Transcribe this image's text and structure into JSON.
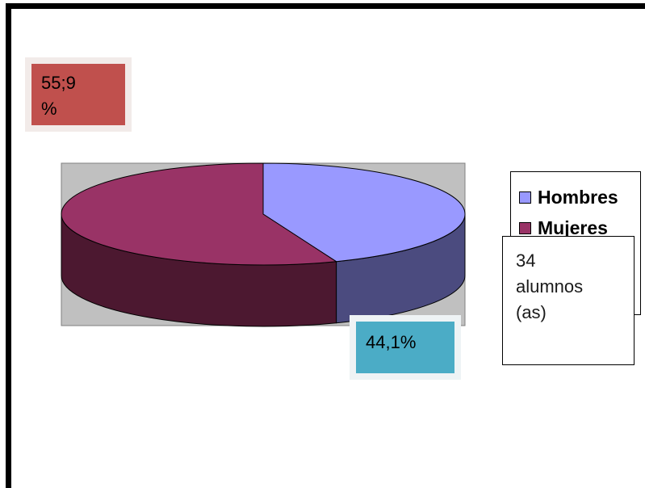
{
  "chart_data": {
    "type": "pie",
    "style": "3d",
    "categories": [
      "Hombres",
      "Mujeres"
    ],
    "values": [
      44.1,
      55.9
    ],
    "colors": {
      "Hombres": "#9999ff",
      "Mujeres": "#993366",
      "Hombres_side": "#4b4b7f",
      "Mujeres_side": "#4c1830",
      "plot_background": "#c0c0c0"
    },
    "data_labels": {
      "Mujeres": "55;9\n%",
      "Hombres": "44,1%"
    },
    "label_colors": {
      "Mujeres": "#c0504d",
      "Hombres": "#4bacc6"
    },
    "legend": {
      "position": "right",
      "entries": [
        "Hombres",
        "Mujeres"
      ]
    },
    "annotation": "34\nalumnos\n(as)"
  }
}
